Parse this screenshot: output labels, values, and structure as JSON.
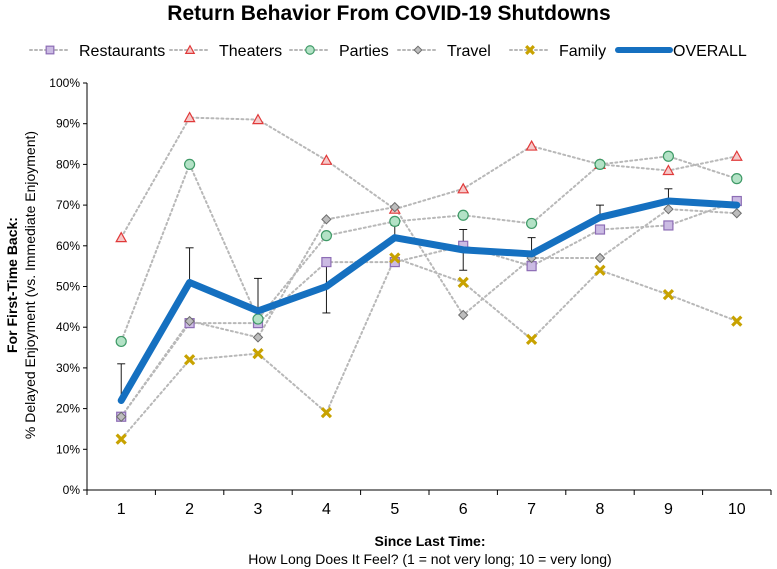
{
  "chart_data": {
    "type": "line",
    "title": "Return Behavior From COVID-19 Shutdowns",
    "xlabel": "Since Last Time:",
    "xlabel_sub": "How Long Does It Feel? (1 = not very long; 10 = very long)",
    "ylabel": "For First-Time Back:",
    "ylabel_sub": "% Delayed Enjoyment (vs. Immediate Enjoyment)",
    "x": [
      1,
      2,
      3,
      4,
      5,
      6,
      7,
      8,
      9,
      10
    ],
    "x_tick_labels": [
      "1",
      "2",
      "3",
      "4",
      "5",
      "6",
      "7",
      "8",
      "9",
      "10"
    ],
    "ylim": [
      0,
      100
    ],
    "y_tick_labels": [
      "0%",
      "10%",
      "20%",
      "30%",
      "40%",
      "50%",
      "60%",
      "70%",
      "80%",
      "90%",
      "100%"
    ],
    "legend_position": "top",
    "series": [
      {
        "name": "Restaurants",
        "marker": "square",
        "color": "#8d6db5",
        "fill": "#cbbbe3",
        "values": [
          18,
          41,
          41,
          56,
          56,
          60,
          55,
          64,
          65,
          71
        ]
      },
      {
        "name": "Theaters",
        "marker": "triangle",
        "color": "#e03a3a",
        "fill": "#f6c9c9",
        "values": [
          62,
          91.5,
          91,
          81,
          69,
          74,
          84.5,
          80,
          78.5,
          82
        ]
      },
      {
        "name": "Parties",
        "marker": "circle",
        "color": "#3f9a67",
        "fill": "#b3e2c6",
        "values": [
          36.5,
          80,
          42,
          62.5,
          66,
          67.5,
          65.5,
          80,
          82,
          76.5
        ]
      },
      {
        "name": "Travel",
        "marker": "diamond",
        "color": "#808080",
        "fill": "#bdbdbd",
        "values": [
          18,
          41.5,
          37.5,
          66.5,
          69.5,
          43,
          57,
          57,
          69,
          68
        ]
      },
      {
        "name": "Family",
        "marker": "x",
        "color": "#c8a200",
        "fill": "#c8a200",
        "values": [
          12.5,
          32,
          33.5,
          19,
          57,
          51,
          37,
          54,
          48,
          41.5
        ]
      },
      {
        "name": "OVERALL",
        "marker": "none",
        "color": "#1570c0",
        "fill": "#1570c0",
        "values": [
          22,
          51,
          44,
          50,
          62,
          59,
          58,
          67,
          71,
          70
        ],
        "error_upper": [
          31,
          59.5,
          52,
          56,
          65,
          64,
          62,
          70,
          74,
          72
        ],
        "error_lower": [
          null,
          null,
          null,
          43.5,
          null,
          54,
          null,
          null,
          null,
          null
        ]
      }
    ]
  }
}
